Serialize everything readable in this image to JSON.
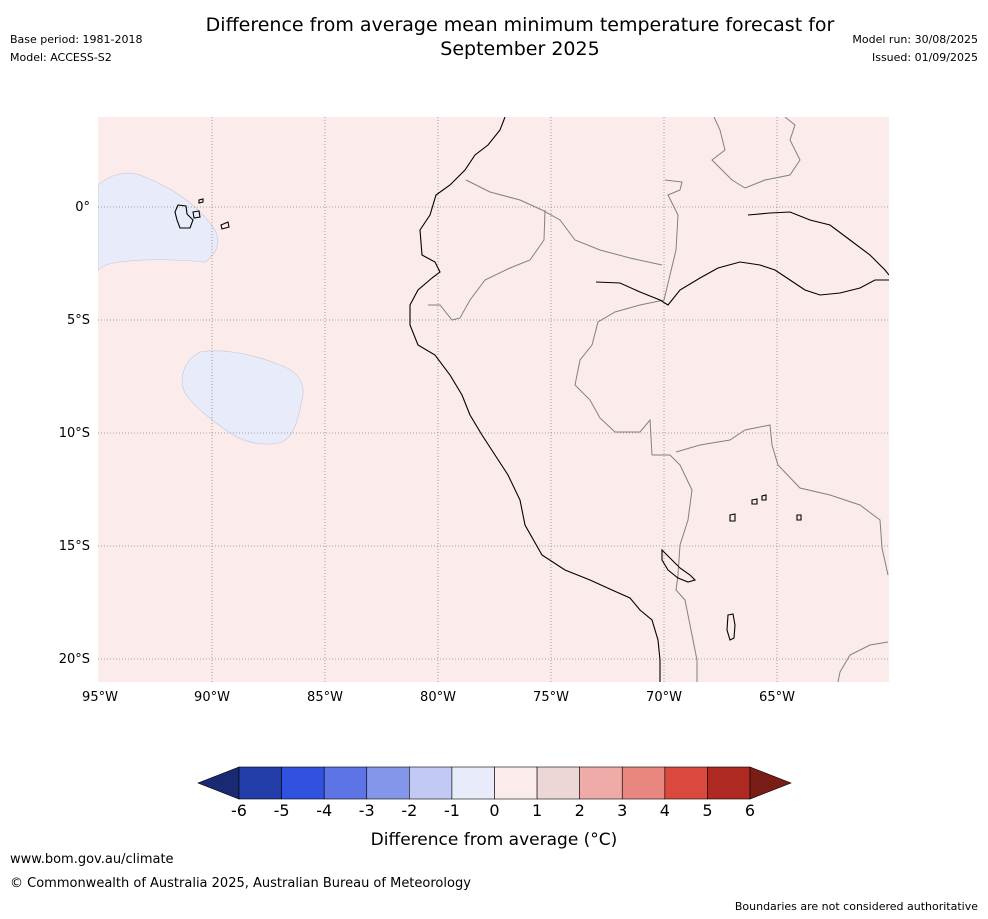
{
  "header": {
    "title_line1": "Difference from average mean minimum temperature forecast for",
    "title_line2": "September 2025",
    "base_period": "Base period: 1981-2018",
    "model": "Model: ACCESS-S2",
    "model_run": "Model run: 30/08/2025",
    "issued": "Issued: 01/09/2025"
  },
  "map": {
    "region": "Western South America and East Pacific",
    "lat_labels": [
      "0°",
      "5°S",
      "10°S",
      "15°S",
      "20°S"
    ],
    "lon_labels": [
      "95°W",
      "90°W",
      "85°W",
      "80°W",
      "75°W",
      "70°W",
      "65°W"
    ],
    "background_anomaly_color": "#fbeceb",
    "negative_anomaly_color": "#e8ecfa",
    "gridline_color": "#888888",
    "coastline_color": "#000000",
    "border_color": "#808080"
  },
  "colorbar": {
    "label": "Difference from average (°C)",
    "ticks": [
      "-6",
      "-5",
      "-4",
      "-3",
      "-2",
      "-1",
      "0",
      "1",
      "2",
      "3",
      "4",
      "5",
      "6"
    ],
    "under_color": "#1a2a72",
    "over_color": "#7a1d17",
    "colors": [
      "#233da8",
      "#3152e0",
      "#5c74e6",
      "#8396ea",
      "#c1c9f4",
      "#e8ecfa",
      "#fbeceb",
      "#edd6d6",
      "#efaba7",
      "#e7877f",
      "#db493e",
      "#ad2921"
    ]
  },
  "footer": {
    "url": "www.bom.gov.au/climate",
    "copyright": "© Commonwealth of Australia 2025, Australian Bureau of Meteorology",
    "note": "Boundaries are not considered authoritative"
  }
}
